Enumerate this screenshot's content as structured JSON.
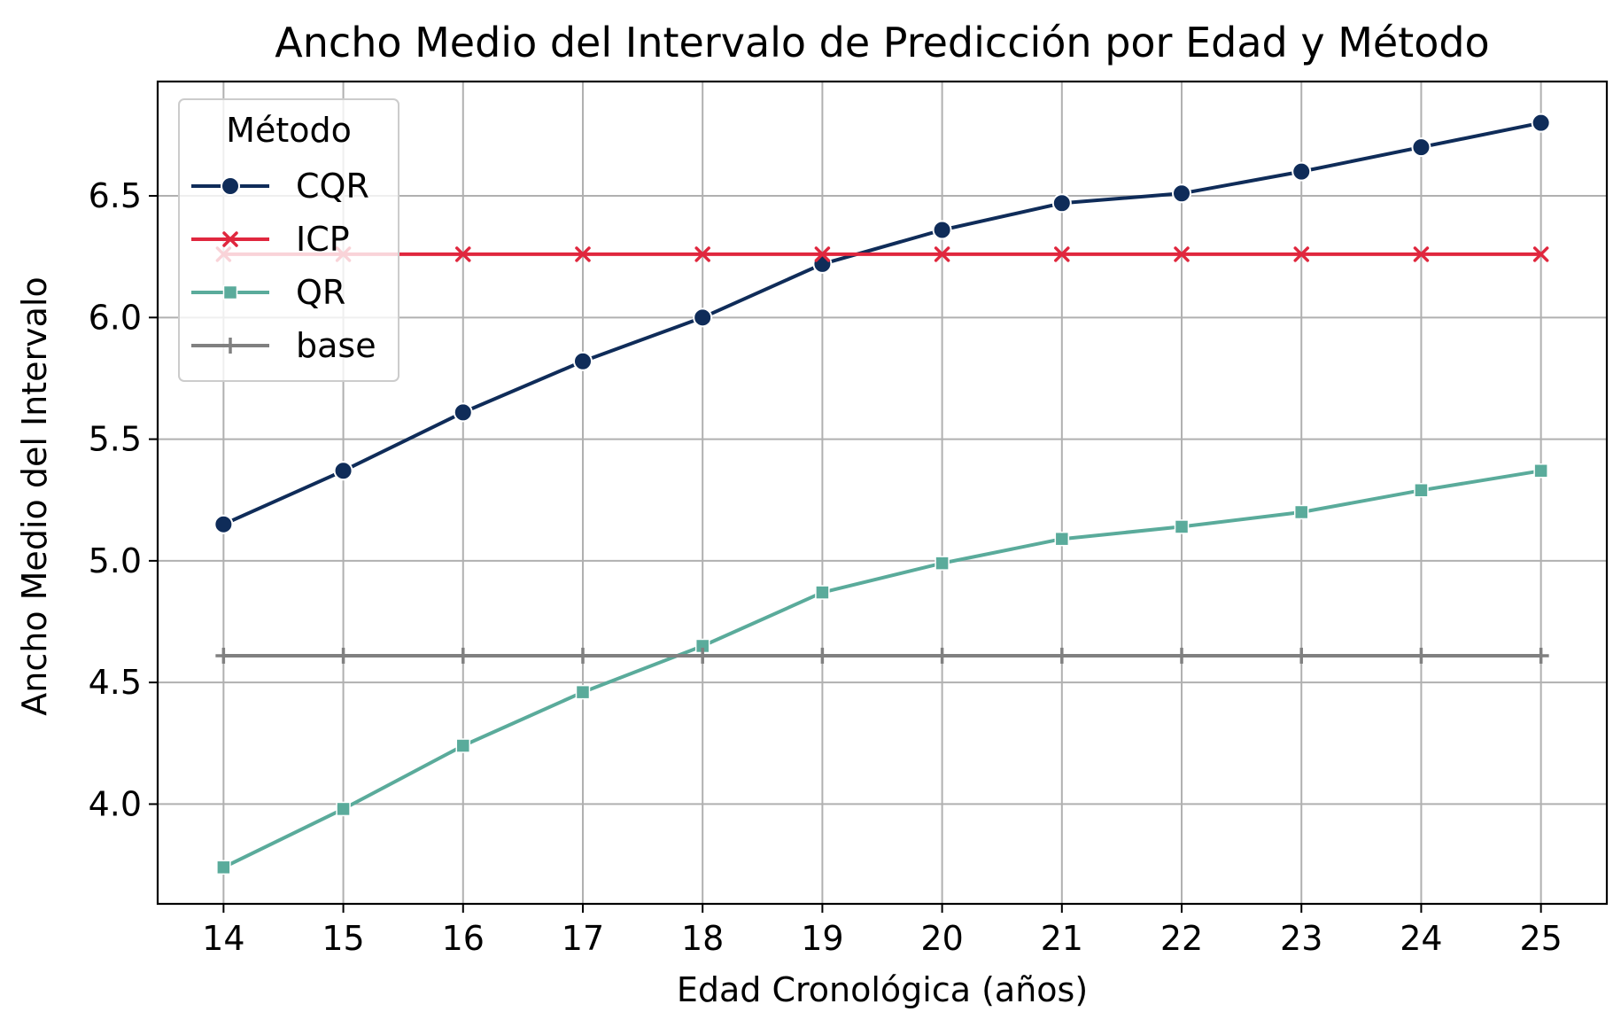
{
  "chart_data": {
    "type": "line",
    "title": "Ancho Medio del Intervalo de Predicción por Edad y Método",
    "xlabel": "Edad Cronológica (años)",
    "ylabel": "Ancho Medio del Intervalo",
    "x": [
      14,
      15,
      16,
      17,
      18,
      19,
      20,
      21,
      22,
      23,
      24,
      25
    ],
    "xlim": [
      13.45,
      25.55
    ],
    "ylim": [
      3.59,
      6.97
    ],
    "xticks": [
      "14",
      "15",
      "16",
      "17",
      "18",
      "19",
      "20",
      "21",
      "22",
      "23",
      "24",
      "25"
    ],
    "yticks": [
      "4.0",
      "4.5",
      "5.0",
      "5.5",
      "6.0",
      "6.5"
    ],
    "grid": true,
    "legend": {
      "title": "Método",
      "placement": "top-left"
    },
    "series": [
      {
        "name": "CQR",
        "color": "#0f2c59",
        "marker": "circle",
        "values": [
          5.15,
          5.37,
          5.61,
          5.82,
          6.0,
          6.22,
          6.36,
          6.47,
          6.51,
          6.6,
          6.7,
          6.8
        ]
      },
      {
        "name": "ICP",
        "color": "#e0273e",
        "marker": "x",
        "values": [
          6.26,
          6.26,
          6.26,
          6.26,
          6.26,
          6.26,
          6.26,
          6.26,
          6.26,
          6.26,
          6.26,
          6.26
        ]
      },
      {
        "name": "QR",
        "color": "#5aab9b",
        "marker": "square",
        "values": [
          3.74,
          3.98,
          4.24,
          4.46,
          4.65,
          4.87,
          4.99,
          5.09,
          5.14,
          5.2,
          5.29,
          5.37
        ]
      },
      {
        "name": "base",
        "color": "#808080",
        "marker": "plus",
        "values": [
          4.61,
          4.61,
          4.61,
          4.61,
          4.61,
          4.61,
          4.61,
          4.61,
          4.61,
          4.61,
          4.61,
          4.61
        ]
      }
    ]
  }
}
